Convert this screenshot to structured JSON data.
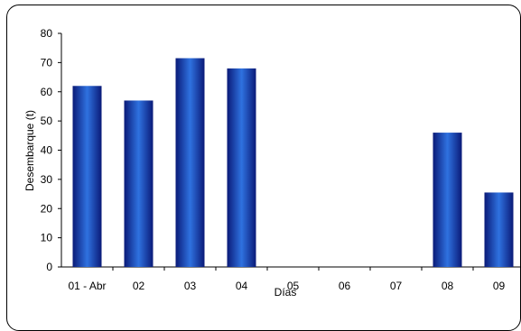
{
  "chart_data": {
    "type": "bar",
    "categories": [
      "01 - Abr",
      "02",
      "03",
      "04",
      "05",
      "06",
      "07",
      "08",
      "09"
    ],
    "values": [
      62,
      57,
      71.5,
      68,
      null,
      null,
      null,
      46,
      25.5
    ],
    "title": "",
    "xlabel": "Días",
    "ylabel": "Desembarque (t)",
    "ylim": [
      0,
      80
    ],
    "yticks": [
      "0",
      "10",
      "20",
      "30",
      "40",
      "50",
      "60",
      "70",
      "80"
    ],
    "grid": false,
    "legend": "none",
    "colors": {
      "bar_edge": "#0a1a78",
      "bar_center": "#2f72e0",
      "bar_mid": "#0b2fa6"
    }
  }
}
